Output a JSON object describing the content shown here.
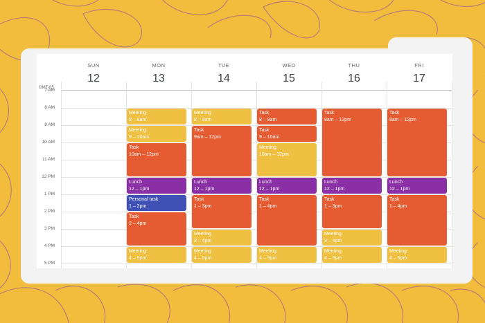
{
  "calendar": {
    "timezone": "GMT-05",
    "days": [
      {
        "dow": "SUN",
        "num": "12"
      },
      {
        "dow": "MON",
        "num": "13"
      },
      {
        "dow": "TUE",
        "num": "14"
      },
      {
        "dow": "WED",
        "num": "15"
      },
      {
        "dow": "THU",
        "num": "16"
      },
      {
        "dow": "FRI",
        "num": "17"
      }
    ],
    "hours": [
      "7 AM",
      "8 AM",
      "9 AM",
      "10 AM",
      "11 AM",
      "12 PM",
      "1 PM",
      "2 PM",
      "3 PM",
      "4 PM",
      "5 PM"
    ],
    "colors": {
      "meeting": "#f0c043",
      "task": "#e65c32",
      "lunch": "#8a2fa5",
      "personal": "#3f51b5",
      "background": "#f2bd3d"
    },
    "events": [
      {
        "day": 1,
        "start": 8,
        "end": 9,
        "kind": "meeting",
        "title": "Meeting",
        "time": "8 – 9am"
      },
      {
        "day": 1,
        "start": 9,
        "end": 10,
        "kind": "meeting",
        "title": "Meeting",
        "time": "9 – 10am"
      },
      {
        "day": 1,
        "start": 10,
        "end": 12,
        "kind": "task",
        "title": "Task",
        "time": "10am – 12pm"
      },
      {
        "day": 1,
        "start": 12,
        "end": 13,
        "kind": "lunch",
        "title": "Lunch",
        "time": "12 – 1pm"
      },
      {
        "day": 1,
        "start": 13,
        "end": 14,
        "kind": "personal",
        "title": "Personal task",
        "time": "1 – 2pm"
      },
      {
        "day": 1,
        "start": 14,
        "end": 16,
        "kind": "task",
        "title": "Task",
        "time": "2 – 4pm"
      },
      {
        "day": 1,
        "start": 16,
        "end": 17,
        "kind": "meeting",
        "title": "Meeting",
        "time": "4 – 5pm"
      },
      {
        "day": 2,
        "start": 8,
        "end": 9,
        "kind": "meeting",
        "title": "Meeting",
        "time": "8 – 9am"
      },
      {
        "day": 2,
        "start": 9,
        "end": 12,
        "kind": "task",
        "title": "Task",
        "time": "9am – 12pm"
      },
      {
        "day": 2,
        "start": 12,
        "end": 13,
        "kind": "lunch",
        "title": "Lunch",
        "time": "12 – 1pm"
      },
      {
        "day": 2,
        "start": 13,
        "end": 15,
        "kind": "task",
        "title": "Task",
        "time": "1 – 3pm"
      },
      {
        "day": 2,
        "start": 15,
        "end": 16,
        "kind": "meeting",
        "title": "Meeting",
        "time": "3 – 4pm"
      },
      {
        "day": 2,
        "start": 16,
        "end": 17,
        "kind": "meeting",
        "title": "Meeting",
        "time": "4 – 5pm"
      },
      {
        "day": 3,
        "start": 8,
        "end": 9,
        "kind": "task",
        "title": "Task",
        "time": "8 – 9am"
      },
      {
        "day": 3,
        "start": 9,
        "end": 10,
        "kind": "task",
        "title": "Task",
        "time": "9 – 10am"
      },
      {
        "day": 3,
        "start": 10,
        "end": 12,
        "kind": "meeting",
        "title": "Meeting",
        "time": "10am – 12pm"
      },
      {
        "day": 3,
        "start": 12,
        "end": 13,
        "kind": "lunch",
        "title": "Lunch",
        "time": "12 – 1pm"
      },
      {
        "day": 3,
        "start": 13,
        "end": 16,
        "kind": "task",
        "title": "Task",
        "time": "1 – 4pm"
      },
      {
        "day": 3,
        "start": 16,
        "end": 17,
        "kind": "meeting",
        "title": "Meeting",
        "time": "4 – 5pm"
      },
      {
        "day": 4,
        "start": 8,
        "end": 12,
        "kind": "task",
        "title": "Task",
        "time": "8am – 12pm"
      },
      {
        "day": 4,
        "start": 12,
        "end": 13,
        "kind": "lunch",
        "title": "Lunch",
        "time": "12 – 1pm"
      },
      {
        "day": 4,
        "start": 13,
        "end": 15,
        "kind": "task",
        "title": "Task",
        "time": "1 – 3pm"
      },
      {
        "day": 4,
        "start": 15,
        "end": 16,
        "kind": "meeting",
        "title": "Meeting",
        "time": "3 – 4pm"
      },
      {
        "day": 4,
        "start": 16,
        "end": 17,
        "kind": "meeting",
        "title": "Meeting",
        "time": "4 – 5pm"
      },
      {
        "day": 5,
        "start": 8,
        "end": 12,
        "kind": "task",
        "title": "Task",
        "time": "8am – 12pm"
      },
      {
        "day": 5,
        "start": 12,
        "end": 13,
        "kind": "lunch",
        "title": "Lunch",
        "time": "12 – 1pm"
      },
      {
        "day": 5,
        "start": 13,
        "end": 16,
        "kind": "task",
        "title": "Task",
        "time": "1 – 4pm"
      },
      {
        "day": 5,
        "start": 16,
        "end": 17,
        "kind": "meeting",
        "title": "Meeting",
        "time": "4 – 5pm"
      }
    ]
  }
}
